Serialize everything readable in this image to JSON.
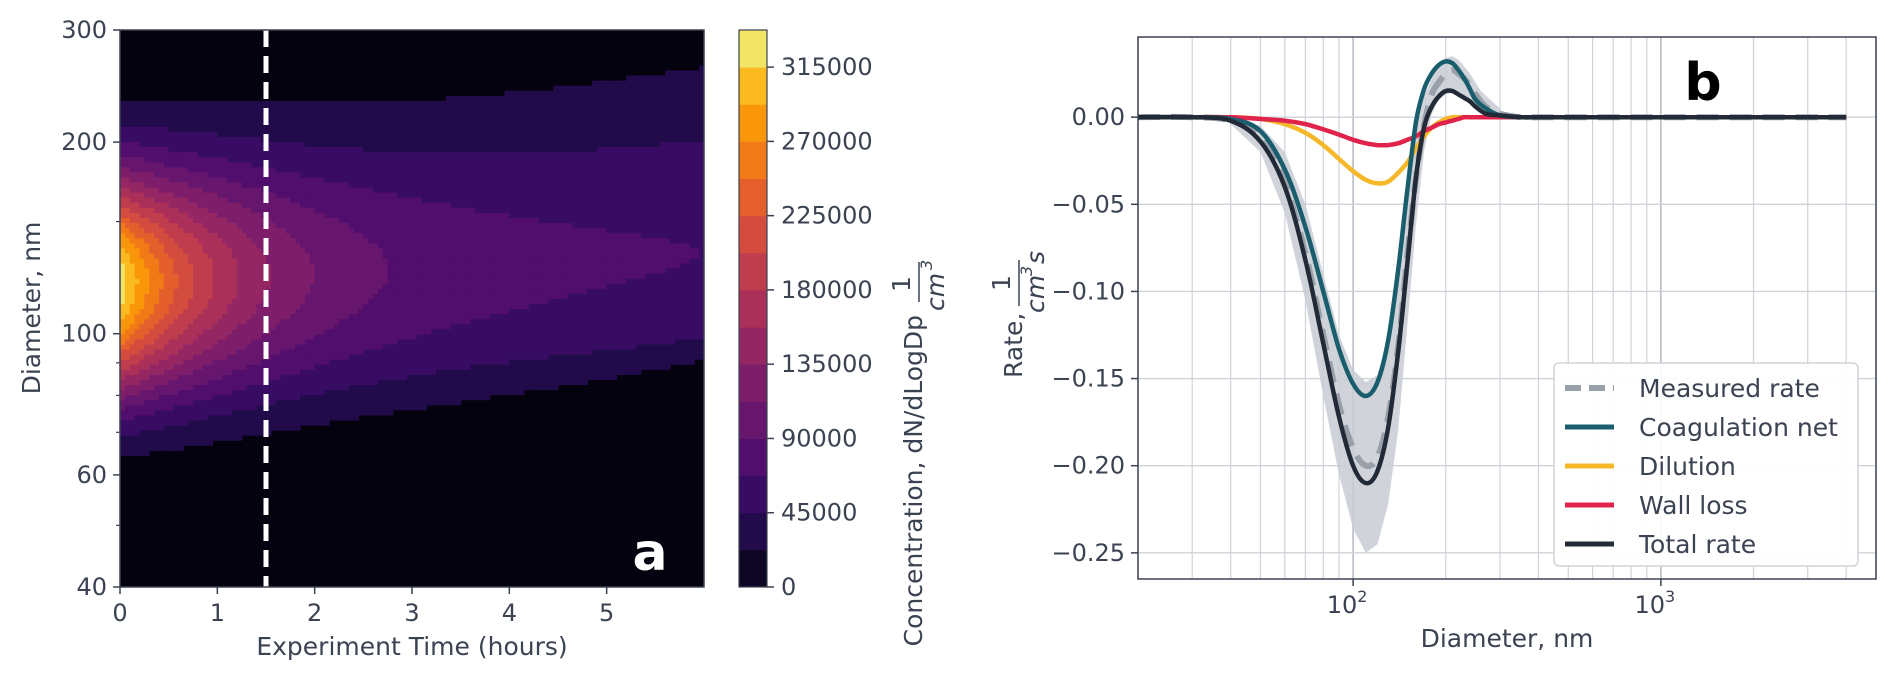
{
  "chart_data": [
    {
      "type": "heatmap",
      "panel_label": "a",
      "xlabel": "Experiment Time (hours)",
      "ylabel": "Diameter, nm",
      "xlim": [
        0,
        6
      ],
      "ylim": [
        40,
        300
      ],
      "y_scale": "log",
      "x_ticks": [
        "0",
        "1",
        "2",
        "3",
        "4",
        "5"
      ],
      "y_ticks": [
        "40",
        "60",
        "100",
        "200",
        "300"
      ],
      "vline_x": 1.5,
      "vline_style": "dashed",
      "peak_diameter_nm": 120,
      "colorbar": {
        "label": "Concentration, dN/dLogDp",
        "unit_num": "1",
        "unit_den": "cm",
        "unit_sup": "3",
        "range": [
          0,
          337500
        ],
        "levels": 15,
        "ticks": [
          "0",
          "45000",
          "90000",
          "135000",
          "180000",
          "225000",
          "270000",
          "315000"
        ],
        "colormap": "inferno"
      }
    },
    {
      "type": "line",
      "panel_label": "b",
      "xlabel": "Diameter, nm",
      "ylabel_prefix": "Rate,",
      "ylabel_num": "1",
      "ylabel_den": "cm",
      "ylabel_sup": "3",
      "ylabel_suffix": "s",
      "x_scale": "log",
      "xlim": [
        20,
        5000
      ],
      "ylim": [
        -0.265,
        0.046
      ],
      "grid": true,
      "legend_position": "lower-right",
      "y_ticks": [
        "0.00",
        "−0.05",
        "−0.10",
        "−0.15",
        "−0.20",
        "−0.25"
      ],
      "x_ticks": [
        {
          "base": "10",
          "exp": "2"
        },
        {
          "base": "10",
          "exp": "3"
        }
      ],
      "x": [
        20,
        30,
        40,
        50,
        60,
        70,
        80,
        90,
        100,
        110,
        120,
        130,
        140,
        150,
        160,
        170,
        180,
        190,
        200,
        210,
        220,
        230,
        240,
        250,
        270,
        300,
        350,
        400,
        500,
        700,
        1000,
        2000,
        4000
      ],
      "series": [
        {
          "name": "Measured rate",
          "color": "#9aa0aa",
          "style": "dashed",
          "values": [
            0,
            0,
            -0.002,
            -0.012,
            -0.038,
            -0.078,
            -0.125,
            -0.165,
            -0.19,
            -0.2,
            -0.195,
            -0.172,
            -0.132,
            -0.08,
            -0.035,
            -0.005,
            0.013,
            0.02,
            0.025,
            0.027,
            0.025,
            0.022,
            0.018,
            0.013,
            0.006,
            0.002,
            0,
            0,
            0,
            0,
            0,
            0,
            0
          ]
        },
        {
          "name": "Coagulation net",
          "color": "#1a5e6e",
          "style": "solid",
          "values": [
            0,
            0,
            -0.001,
            -0.008,
            -0.03,
            -0.063,
            -0.1,
            -0.133,
            -0.153,
            -0.16,
            -0.152,
            -0.128,
            -0.088,
            -0.042,
            -0.003,
            0.016,
            0.025,
            0.03,
            0.032,
            0.031,
            0.027,
            0.022,
            0.016,
            0.01,
            0.005,
            0.001,
            0,
            0,
            0,
            0,
            0,
            0,
            0
          ]
        },
        {
          "name": "Dilution",
          "color": "#f5b82a",
          "style": "solid",
          "values": [
            0,
            0,
            0,
            -0.001,
            -0.004,
            -0.009,
            -0.016,
            -0.024,
            -0.031,
            -0.036,
            -0.038,
            -0.037,
            -0.032,
            -0.026,
            -0.018,
            -0.011,
            -0.006,
            -0.003,
            -0.001,
            0,
            0,
            0,
            0,
            0,
            0,
            0,
            0,
            0,
            0,
            0,
            0,
            0,
            0
          ]
        },
        {
          "name": "Wall loss",
          "color": "#e0234a",
          "style": "solid",
          "values": [
            0,
            0,
            0,
            -0.001,
            -0.002,
            -0.004,
            -0.007,
            -0.01,
            -0.013,
            -0.015,
            -0.016,
            -0.016,
            -0.015,
            -0.013,
            -0.011,
            -0.008,
            -0.006,
            -0.004,
            -0.003,
            -0.002,
            -0.001,
            0,
            0,
            0,
            0,
            0,
            0,
            0,
            0,
            0,
            0,
            0,
            0
          ]
        },
        {
          "name": "Total rate",
          "color": "#232a37",
          "style": "solid",
          "values": [
            0,
            0,
            -0.002,
            -0.014,
            -0.04,
            -0.082,
            -0.13,
            -0.172,
            -0.2,
            -0.21,
            -0.203,
            -0.178,
            -0.135,
            -0.084,
            -0.035,
            -0.006,
            0.006,
            0.012,
            0.015,
            0.015,
            0.013,
            0.011,
            0.009,
            0.006,
            0.002,
            0.001,
            0,
            0,
            0,
            0,
            0,
            0,
            0
          ]
        }
      ],
      "measured_band": {
        "x": [
          40,
          50,
          60,
          70,
          80,
          90,
          100,
          110,
          120,
          130,
          140,
          150,
          160,
          170,
          180,
          190,
          200,
          210,
          220,
          240,
          260,
          300
        ],
        "lower": [
          -0.004,
          -0.02,
          -0.055,
          -0.105,
          -0.16,
          -0.205,
          -0.236,
          -0.25,
          -0.245,
          -0.222,
          -0.18,
          -0.12,
          -0.062,
          -0.02,
          0.002,
          0.01,
          0.013,
          0.014,
          0.012,
          0.008,
          0.004,
          0.001
        ],
        "upper": [
          0,
          -0.005,
          -0.02,
          -0.05,
          -0.09,
          -0.125,
          -0.145,
          -0.152,
          -0.148,
          -0.125,
          -0.085,
          -0.042,
          -0.008,
          0.012,
          0.022,
          0.03,
          0.034,
          0.035,
          0.033,
          0.025,
          0.015,
          0.005
        ]
      }
    }
  ]
}
